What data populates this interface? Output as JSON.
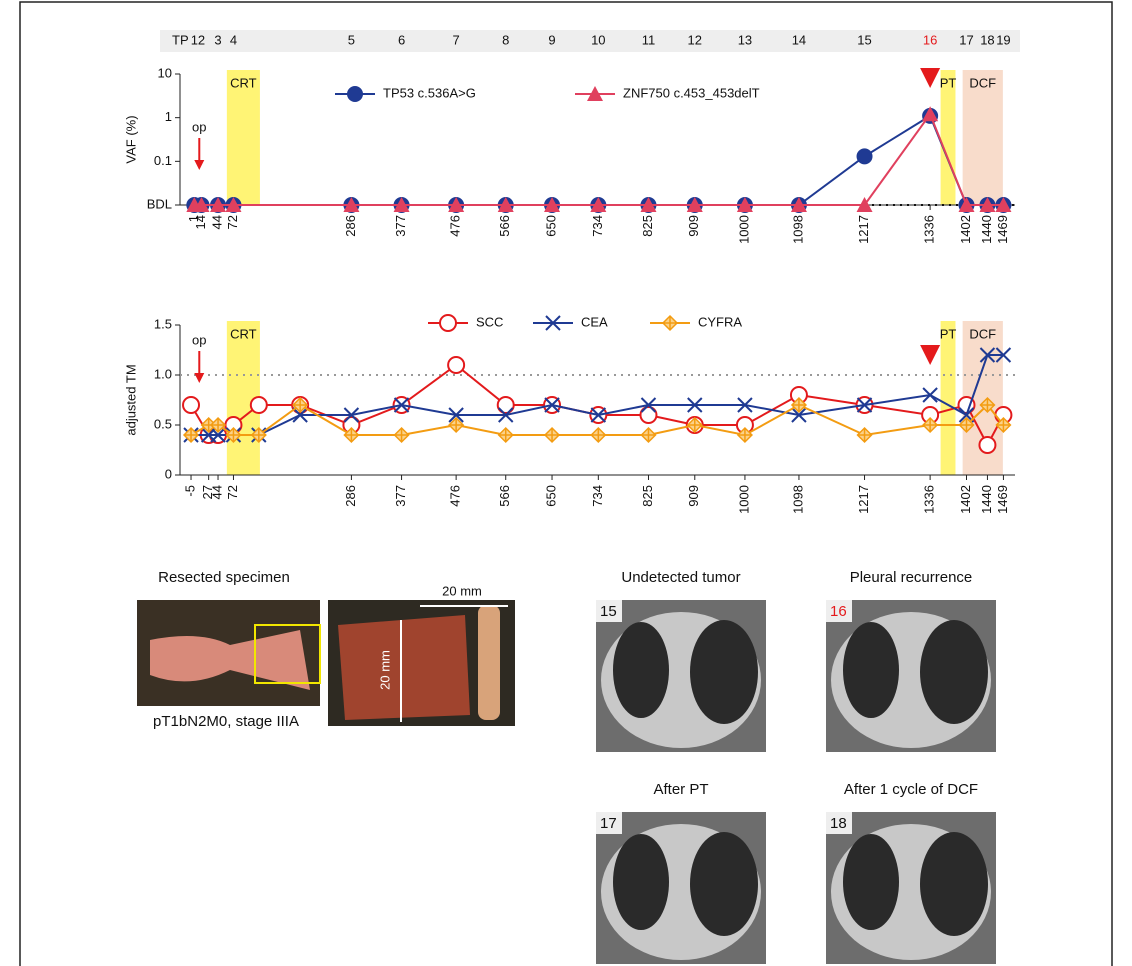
{
  "tp_row": {
    "label": "TP",
    "labels": [
      1,
      2,
      3,
      4,
      5,
      6,
      7,
      8,
      9,
      10,
      11,
      12,
      13,
      14,
      15,
      16,
      17,
      18,
      19
    ],
    "highlight": 16,
    "highlight_color": "#e41a1c"
  },
  "chart_data": [
    {
      "type": "line",
      "ylabel": "VAF (%)",
      "log_y": true,
      "x": [
        1,
        14,
        44,
        72,
        286,
        377,
        476,
        566,
        650,
        734,
        825,
        909,
        1000,
        1098,
        1217,
        1336,
        1402,
        1440,
        1469
      ],
      "xticks": [
        1,
        14,
        44,
        72,
        286,
        377,
        476,
        566,
        650,
        734,
        825,
        909,
        1000,
        1098,
        1217,
        1336,
        1402,
        1440,
        1469
      ],
      "xlim": [
        -25,
        1490
      ],
      "ylim": [
        0.01,
        10
      ],
      "yticks": [
        {
          "value": 0.01,
          "label": "BDL"
        },
        0.1,
        1,
        10
      ],
      "series": [
        {
          "name": "TP53 c.536A>G",
          "color": "#1f3a93",
          "marker": "dot",
          "values": [
            0.01,
            0.01,
            0.01,
            0.01,
            0.01,
            0.01,
            0.01,
            0.01,
            0.01,
            0.01,
            0.01,
            0.01,
            0.01,
            0.01,
            0.13,
            1.1,
            0.01,
            0.01,
            0.01
          ]
        },
        {
          "name": "ZNF750 c.453_453delT",
          "color": "#e0405e",
          "marker": "triangle",
          "values": [
            0.01,
            0.01,
            0.01,
            0.01,
            0.01,
            0.01,
            0.01,
            0.01,
            0.01,
            0.01,
            0.01,
            0.01,
            0.01,
            0.01,
            0.01,
            1.2,
            0.01,
            0.01,
            0.01
          ]
        }
      ],
      "spans": [
        {
          "label": "CRT",
          "range": [
            60,
            120
          ],
          "color": "#fff475"
        },
        {
          "label": "PT",
          "range": [
            1355,
            1382
          ],
          "color": "#fff475"
        },
        {
          "label": "DCF",
          "range": [
            1395,
            1468
          ],
          "color": "#f8dccb"
        }
      ],
      "annotation": {
        "text": "op",
        "x": 10,
        "color": "#e41a1c"
      },
      "event_x": 1336
    },
    {
      "type": "line",
      "ylabel": "adjusted TM",
      "x": [
        -5,
        27,
        44,
        72,
        118,
        193,
        286,
        377,
        476,
        566,
        650,
        734,
        825,
        909,
        1000,
        1098,
        1217,
        1336,
        1402,
        1440,
        1469
      ],
      "xticks": [
        -5,
        27,
        44,
        72,
        286,
        377,
        476,
        566,
        650,
        734,
        825,
        909,
        1000,
        1098,
        1217,
        1336,
        1402,
        1440,
        1469
      ],
      "xlim": [
        -25,
        1490
      ],
      "ylim": [
        0,
        1.5
      ],
      "yticks": [
        0,
        0.5,
        {
          "value": 1,
          "label": "1.0"
        },
        1.5
      ],
      "threshold": 1,
      "series": [
        {
          "name": "SCC",
          "color": "#e31a1c",
          "marker": "ring",
          "values": [
            0.7,
            0.4,
            0.4,
            0.5,
            0.7,
            0.7,
            0.5,
            0.7,
            1.1,
            0.7,
            0.7,
            0.6,
            0.6,
            0.5,
            0.5,
            0.8,
            0.7,
            0.6,
            0.7,
            0.3,
            0.6
          ]
        },
        {
          "name": "CEA",
          "color": "#1f3a93",
          "marker": "cross",
          "values": [
            0.4,
            0.4,
            0.4,
            0.4,
            0.4,
            0.6,
            0.6,
            0.7,
            0.6,
            0.6,
            0.7,
            0.6,
            0.7,
            0.7,
            0.7,
            0.6,
            0.7,
            0.8,
            0.6,
            1.2,
            1.2
          ]
        },
        {
          "name": "CYFRA",
          "color": "#f39c12",
          "marker": "diamond",
          "values": [
            0.4,
            0.5,
            0.5,
            0.4,
            0.4,
            0.7,
            0.4,
            0.4,
            0.5,
            0.4,
            0.4,
            0.4,
            0.4,
            0.5,
            0.4,
            0.7,
            0.4,
            0.5,
            0.5,
            0.7,
            0.5
          ]
        }
      ],
      "spans": [
        {
          "label": "CRT",
          "range": [
            60,
            120
          ],
          "color": "#fff475"
        },
        {
          "label": "PT",
          "range": [
            1355,
            1382
          ],
          "color": "#fff475"
        },
        {
          "label": "DCF",
          "range": [
            1395,
            1468
          ],
          "color": "#f8dccb"
        }
      ],
      "annotation": {
        "text": "op",
        "x": 10,
        "color": "#e41a1c"
      },
      "event_x": 1336
    }
  ],
  "specimen": {
    "title": "Resected specimen",
    "caption": "pT1bN2M0, stage IIIA",
    "scale_h": "20 mm",
    "scale_v": "20 mm"
  },
  "ct_panels": [
    {
      "title": "Undetected tumor",
      "tp": 15
    },
    {
      "title": "Pleural recurrence",
      "tp": 16
    },
    {
      "title": "After PT",
      "tp": 17
    },
    {
      "title": "After 1 cycle of DCF",
      "tp": 18
    }
  ]
}
